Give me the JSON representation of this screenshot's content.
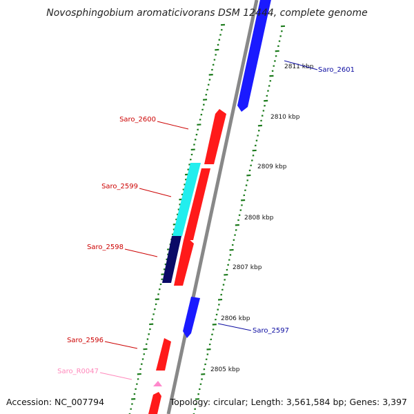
{
  "title": "Novosphingobium aromaticivorans DSM 12444, complete genome",
  "ruler": [
    {
      "label": "2811 kbp",
      "kbp": 2811
    },
    {
      "label": "2810 kbp",
      "kbp": 2810
    },
    {
      "label": "2809 kbp",
      "kbp": 2809
    },
    {
      "label": "2808 kbp",
      "kbp": 2808
    },
    {
      "label": "2807 kbp",
      "kbp": 2807
    },
    {
      "label": "2806 kbp",
      "kbp": 2806
    },
    {
      "label": "2805 kbp",
      "kbp": 2805
    }
  ],
  "gene_labels": [
    {
      "name": "Saro_2601",
      "color": "#0a0aa0"
    },
    {
      "name": "Saro_2600",
      "color": "#cc0000"
    },
    {
      "name": "Saro_2599",
      "color": "#cc0000"
    },
    {
      "name": "Saro_2598",
      "color": "#cc0000"
    },
    {
      "name": "Saro_2597",
      "color": "#0a0aa0"
    },
    {
      "name": "Saro_2596",
      "color": "#cc0000"
    },
    {
      "name": "Saro_R0047",
      "color": "#ff88bb"
    }
  ],
  "feature_colors": {
    "forward_cds": "#1a1aff",
    "reverse_cds": "#ff1a1a",
    "cyan_feature": "#22eeee",
    "navy_feature": "#0a0a66",
    "rna": "#ff88cc",
    "backbone": "#888888",
    "ticks": "#1a7a1a"
  },
  "footer": {
    "accession": "Accession: NC_007794",
    "topology": "Topology: circular; Length: 3,561,584 bp; Genes: 3,397"
  }
}
